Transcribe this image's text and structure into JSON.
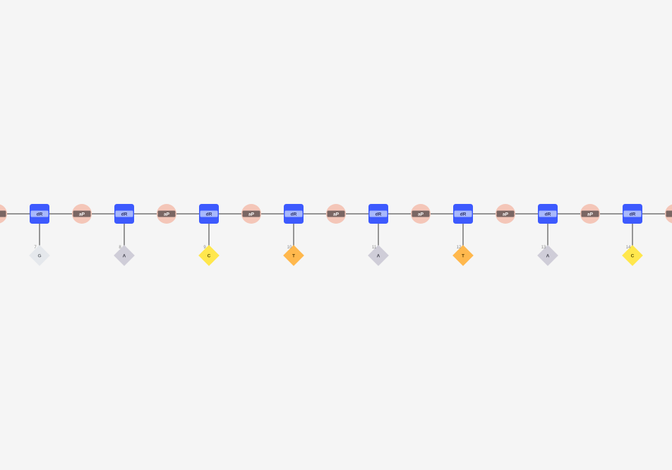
{
  "strand": {
    "backbone_color": "#757575",
    "sugar": {
      "label": "dR",
      "color": "#3d5afe",
      "label_bg": "#a8b8fb",
      "label_color": "#2a2f66"
    },
    "phosphate": {
      "label": "aP",
      "color": "#f4c6b8",
      "label_bg": "#7a6663",
      "label_color": "#ffffff"
    },
    "nucleotides": [
      {
        "index": "7",
        "base": "G",
        "color": "#e5e8ec",
        "text_color": "#6b6f75"
      },
      {
        "index": "8",
        "base": "A",
        "color": "#cfcdd8",
        "text_color": "#4a4a55"
      },
      {
        "index": "9",
        "base": "C",
        "color": "#ffe74d",
        "text_color": "#5a4d00"
      },
      {
        "index": "10",
        "base": "T",
        "color": "#ffb84d",
        "text_color": "#5a3a00"
      },
      {
        "index": "11",
        "base": "A",
        "color": "#cfcdd8",
        "text_color": "#4a4a55"
      },
      {
        "index": "12",
        "base": "T",
        "color": "#ffb84d",
        "text_color": "#5a3a00"
      },
      {
        "index": "13",
        "base": "A",
        "color": "#cfcdd8",
        "text_color": "#4a4a55"
      },
      {
        "index": "14",
        "base": "C",
        "color": "#ffe74d",
        "text_color": "#5a4d00"
      }
    ]
  }
}
